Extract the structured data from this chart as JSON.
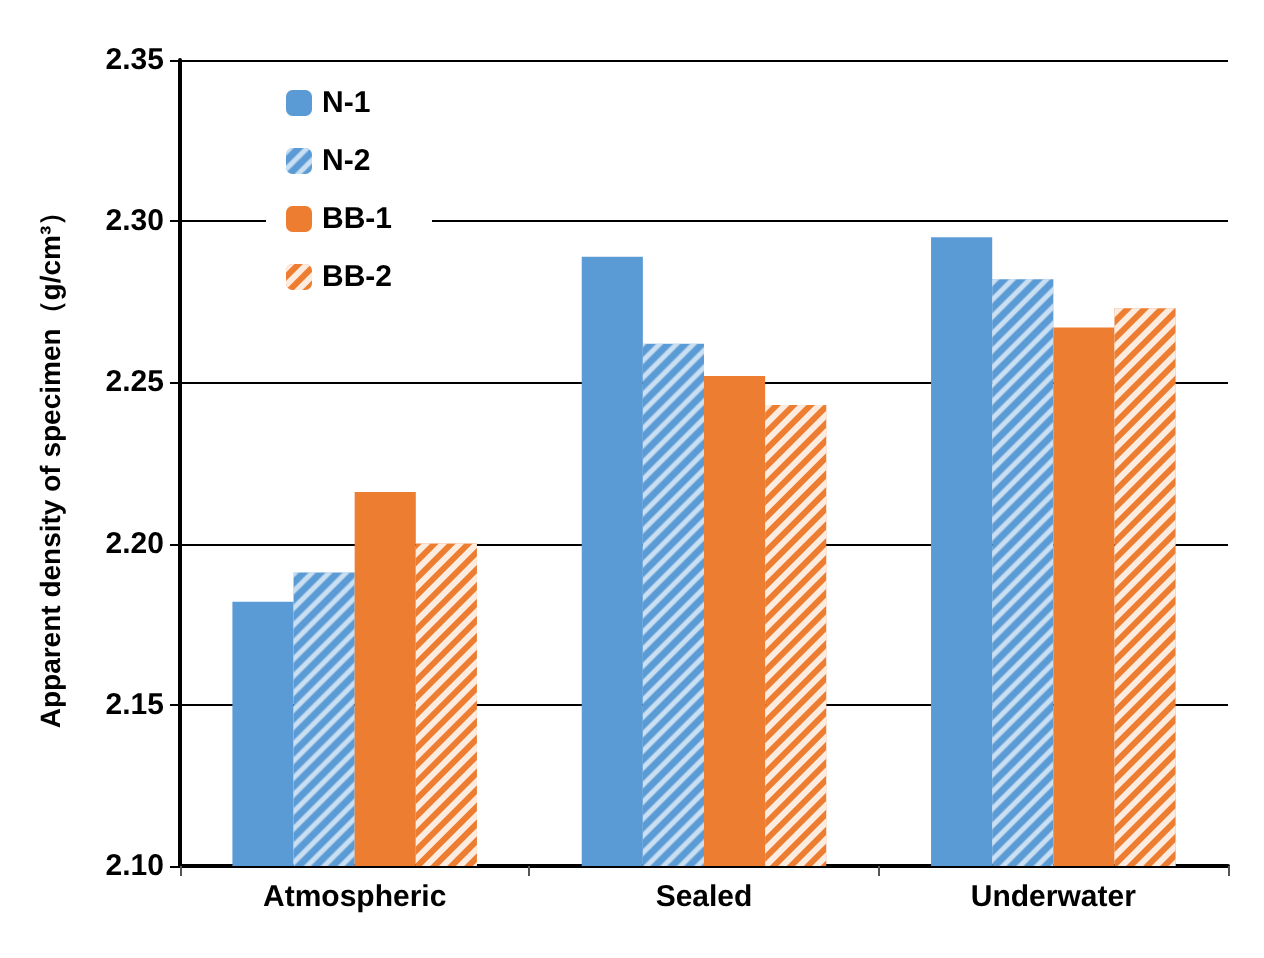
{
  "chart_data": {
    "type": "bar",
    "ylabel": "Apparent density of specimen（g/cm³）",
    "categories": [
      "Atmospheric",
      "Sealed",
      "Underwater"
    ],
    "series": [
      {
        "name": "N-1",
        "color": "#5b9bd5",
        "values": [
          2.182,
          2.289,
          2.295
        ]
      },
      {
        "name": "N-2",
        "color": "#5b9bd5",
        "values": [
          2.191,
          2.262,
          2.282
        ]
      },
      {
        "name": "BB-1",
        "color": "#ed7d31",
        "values": [
          2.216,
          2.252,
          2.267
        ]
      },
      {
        "name": "BB-2",
        "color": "#ed7d31",
        "values": [
          2.2,
          2.243,
          2.273
        ]
      }
    ],
    "ylim": [
      2.1,
      2.35
    ],
    "yticks": [
      {
        "value": 2.1,
        "label": "2.10"
      },
      2.15,
      {
        "value": 2.2,
        "label": "2.20"
      },
      2.25,
      {
        "value": 2.3,
        "label": "2.30"
      },
      2.35
    ],
    "grid": "y",
    "legend": "top left"
  }
}
